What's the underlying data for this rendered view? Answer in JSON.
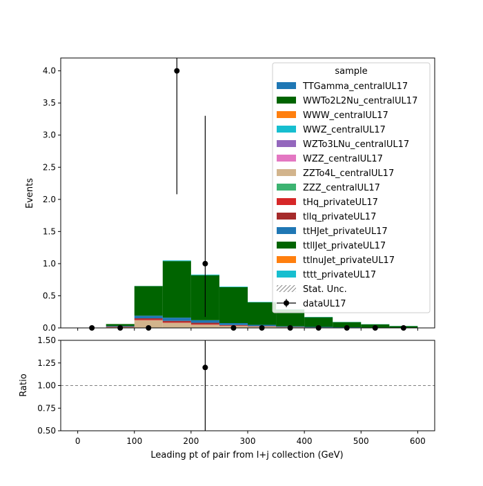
{
  "chart_data": [
    {
      "type": "bar",
      "panel": "main",
      "stacked": true,
      "ylabel": "Events",
      "xlim": [
        -30,
        630
      ],
      "ylim": [
        0,
        4.2
      ],
      "yticks": [
        "0.0",
        "0.5",
        "1.0",
        "1.5",
        "2.0",
        "2.5",
        "3.0",
        "3.5",
        "4.0"
      ],
      "bin_edges": [
        0,
        50,
        100,
        150,
        200,
        250,
        300,
        350,
        400,
        450,
        500,
        550,
        600
      ],
      "series": [
        {
          "name": "TTGamma_centralUL17",
          "color": "#1f77b4",
          "values": [
            0,
            0,
            0,
            0,
            0,
            0,
            0,
            0,
            0,
            0,
            0,
            0
          ]
        },
        {
          "name": "WWTo2L2Nu_centralUL17",
          "color": "#006400",
          "values": [
            0,
            0,
            0,
            0,
            0,
            0,
            0,
            0,
            0,
            0,
            0,
            0
          ]
        },
        {
          "name": "WWW_centralUL17",
          "color": "#ff7f0e",
          "values": [
            0,
            0,
            0,
            0,
            0,
            0,
            0,
            0,
            0,
            0,
            0,
            0
          ]
        },
        {
          "name": "WWZ_centralUL17",
          "color": "#17becf",
          "values": [
            0,
            0,
            0,
            0,
            0,
            0,
            0,
            0,
            0,
            0,
            0,
            0
          ]
        },
        {
          "name": "WZTo3LNu_centralUL17",
          "color": "#9467bd",
          "values": [
            0,
            0,
            0,
            0,
            0,
            0,
            0,
            0,
            0,
            0,
            0,
            0
          ]
        },
        {
          "name": "WZZ_centralUL17",
          "color": "#e377c2",
          "values": [
            0,
            0,
            0,
            0,
            0,
            0,
            0,
            0,
            0,
            0,
            0,
            0
          ]
        },
        {
          "name": "ZZTo4L_centralUL17",
          "color": "#d2b48c",
          "values": [
            0,
            0.01,
            0.12,
            0.08,
            0.05,
            0.03,
            0.02,
            0.01,
            0.005,
            0.003,
            0.002,
            0.001
          ]
        },
        {
          "name": "ZZZ_centralUL17",
          "color": "#3cb371",
          "values": [
            0,
            0,
            0,
            0,
            0,
            0,
            0,
            0,
            0,
            0,
            0,
            0
          ]
        },
        {
          "name": "tHq_privateUL17",
          "color": "#d62728",
          "values": [
            0,
            0,
            0.01,
            0.01,
            0.01,
            0.005,
            0.003,
            0.002,
            0.001,
            0.001,
            0,
            0
          ]
        },
        {
          "name": "tllq_privateUL17",
          "color": "#a52a2a",
          "values": [
            0,
            0.01,
            0.02,
            0.02,
            0.02,
            0.01,
            0.005,
            0.003,
            0.002,
            0.001,
            0.001,
            0
          ]
        },
        {
          "name": "ttHJet_privateUL17",
          "color": "#1f77b4",
          "values": [
            0,
            0.01,
            0.04,
            0.05,
            0.04,
            0.03,
            0.02,
            0.01,
            0.008,
            0.005,
            0.003,
            0.002
          ]
        },
        {
          "name": "ttllJet_privateUL17",
          "color": "#006400",
          "values": [
            0,
            0.03,
            0.46,
            0.88,
            0.7,
            0.56,
            0.35,
            0.26,
            0.15,
            0.08,
            0.05,
            0.025
          ]
        },
        {
          "name": "ttlnuJet_privateUL17",
          "color": "#ff7f0e",
          "values": [
            0,
            0,
            0,
            0,
            0,
            0,
            0,
            0,
            0,
            0,
            0,
            0
          ]
        },
        {
          "name": "tttt_privateUL17",
          "color": "#17becf",
          "values": [
            0,
            0,
            0.002,
            0.01,
            0.01,
            0.008,
            0.006,
            0.005,
            0.004,
            0.003,
            0.002,
            0.002
          ]
        }
      ],
      "data": {
        "name": "dataUL17",
        "x": [
          25,
          75,
          125,
          175,
          225,
          275,
          325,
          375,
          425,
          475,
          525,
          575
        ],
        "y": [
          0,
          0,
          0,
          4,
          1,
          0,
          0,
          0,
          0,
          0,
          0,
          0
        ],
        "yerr_low": [
          0,
          0,
          0,
          1.92,
          0.83,
          0,
          0,
          0,
          0,
          0,
          0,
          0
        ],
        "yerr_high": [
          0,
          0,
          0,
          3.16,
          2.3,
          0,
          0,
          0,
          0,
          0,
          0,
          0
        ]
      },
      "legend": {
        "title": "sample",
        "placement": "top-right",
        "stat_unc_label": "Stat. Unc."
      }
    },
    {
      "type": "scatter",
      "panel": "ratio",
      "xlabel": "Leading pt of pair from l+j collection (GeV)",
      "ylabel": "Ratio",
      "xlim": [
        -30,
        630
      ],
      "ylim": [
        0.5,
        1.5
      ],
      "xticks": [
        "0",
        "100",
        "200",
        "300",
        "400",
        "500",
        "600"
      ],
      "yticks": [
        "0.50",
        "0.75",
        "1.00",
        "1.25",
        "1.50"
      ],
      "reference_line": 1.0,
      "x": [
        225
      ],
      "y": [
        1.2
      ],
      "yerr_low": [
        1.2
      ],
      "yerr_high": [
        3.0
      ]
    }
  ]
}
